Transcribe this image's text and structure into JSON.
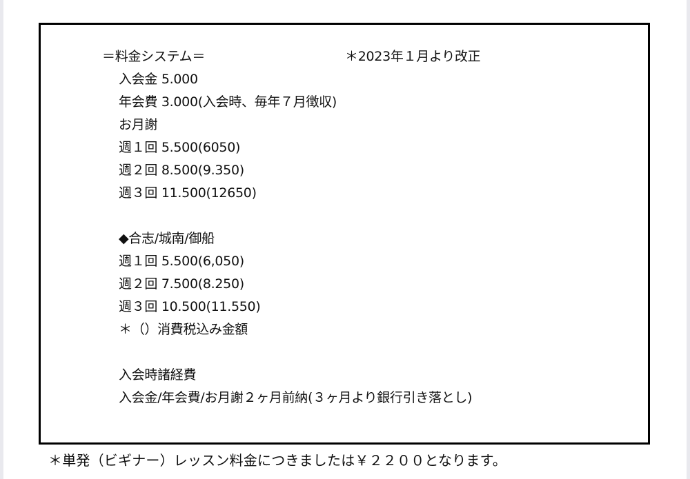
{
  "title": "＝料金システム＝",
  "revision_note": "＊2023年１月より改正",
  "lines": [
    "入会金 5.000",
    "年会費 3.000(入会時、毎年７月徴収)",
    "お月謝",
    "週１回 5.500(6050)",
    "週２回 8.500(9.350)",
    "週３回 11.500(12650)",
    "",
    "◆合志/城南/御船",
    "週１回 5.500(6,050)",
    "週２回 7.500(8.250)",
    "週３回 10.500(11.550)",
    "＊（）消費税込み金額",
    "",
    "入会時諸経費",
    "入会金/年会費/お月謝２ヶ月前納(３ヶ月より銀行引き落とし)"
  ],
  "footer": "＊単発（ビギナー）レッスン料金につきましたは￥２２００となります。"
}
